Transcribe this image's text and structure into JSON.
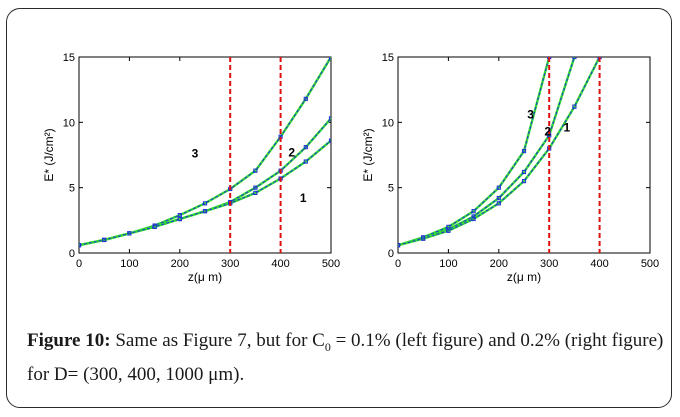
{
  "caption": {
    "label": "Figure 10:",
    "text_before_sub": " Same as Figure 7, but for C",
    "sub": "0",
    "text_after_sub": " = 0.1% (left figure) and 0.2% (right figure) for D= (300, 400, 1000 μm)."
  },
  "colors": {
    "fit_line": "#33dd33",
    "data_markers": "#1f2fd6",
    "data_line": "#1f2fd6",
    "ref_line": "#e01010",
    "axis": "#000000"
  },
  "chart_data": [
    {
      "type": "line",
      "xlabel": "z(μ m)",
      "ylabel": "E* (J/cm²)",
      "xlim": [
        0,
        500
      ],
      "ylim": [
        0,
        15
      ],
      "xticks": [
        0,
        100,
        200,
        300,
        400,
        500
      ],
      "yticks": [
        0,
        5,
        10,
        15
      ],
      "vlines": [
        300,
        400
      ],
      "series": [
        {
          "name": "3",
          "label_at": [
            230,
            7.6
          ],
          "x": [
            0,
            50,
            100,
            150,
            200,
            250,
            300,
            350,
            400,
            450,
            500
          ],
          "y": [
            0.6,
            1.0,
            1.5,
            2.1,
            2.9,
            3.8,
            4.9,
            6.3,
            8.9,
            11.8,
            15.0
          ]
        },
        {
          "name": "2",
          "label_at": [
            422,
            7.7
          ],
          "x": [
            0,
            50,
            100,
            150,
            200,
            250,
            300,
            350,
            400,
            450,
            500
          ],
          "y": [
            0.6,
            1.0,
            1.5,
            2.0,
            2.6,
            3.2,
            3.9,
            5.0,
            6.3,
            8.1,
            10.3
          ]
        },
        {
          "name": "1",
          "label_at": [
            445,
            4.2
          ],
          "x": [
            0,
            50,
            100,
            150,
            200,
            250,
            300,
            350,
            400,
            450,
            500
          ],
          "y": [
            0.6,
            1.0,
            1.5,
            2.0,
            2.6,
            3.2,
            3.8,
            4.6,
            5.7,
            7.0,
            8.6
          ]
        }
      ]
    },
    {
      "type": "line",
      "xlabel": "z(μ m)",
      "ylabel": "E* (J/cm²)",
      "xlim": [
        0,
        500
      ],
      "ylim": [
        0,
        15
      ],
      "xticks": [
        0,
        100,
        200,
        300,
        400,
        500
      ],
      "yticks": [
        0,
        5,
        10,
        15
      ],
      "vlines": [
        300,
        400
      ],
      "series": [
        {
          "name": "3",
          "label_at": [
            263,
            10.6
          ],
          "x": [
            0,
            50,
            100,
            150,
            200,
            250,
            300
          ],
          "y": [
            0.6,
            1.2,
            2.0,
            3.2,
            5.0,
            7.8,
            15.0
          ]
        },
        {
          "name": "2",
          "label_at": [
            297,
            9.3
          ],
          "x": [
            0,
            50,
            100,
            150,
            200,
            250,
            300,
            350
          ],
          "y": [
            0.6,
            1.1,
            1.8,
            2.8,
            4.2,
            6.2,
            9.0,
            15.0
          ]
        },
        {
          "name": "1",
          "label_at": [
            335,
            9.6
          ],
          "x": [
            0,
            50,
            100,
            150,
            200,
            250,
            300,
            350,
            400
          ],
          "y": [
            0.6,
            1.1,
            1.7,
            2.6,
            3.8,
            5.5,
            8.0,
            11.2,
            15.0
          ]
        }
      ]
    }
  ]
}
